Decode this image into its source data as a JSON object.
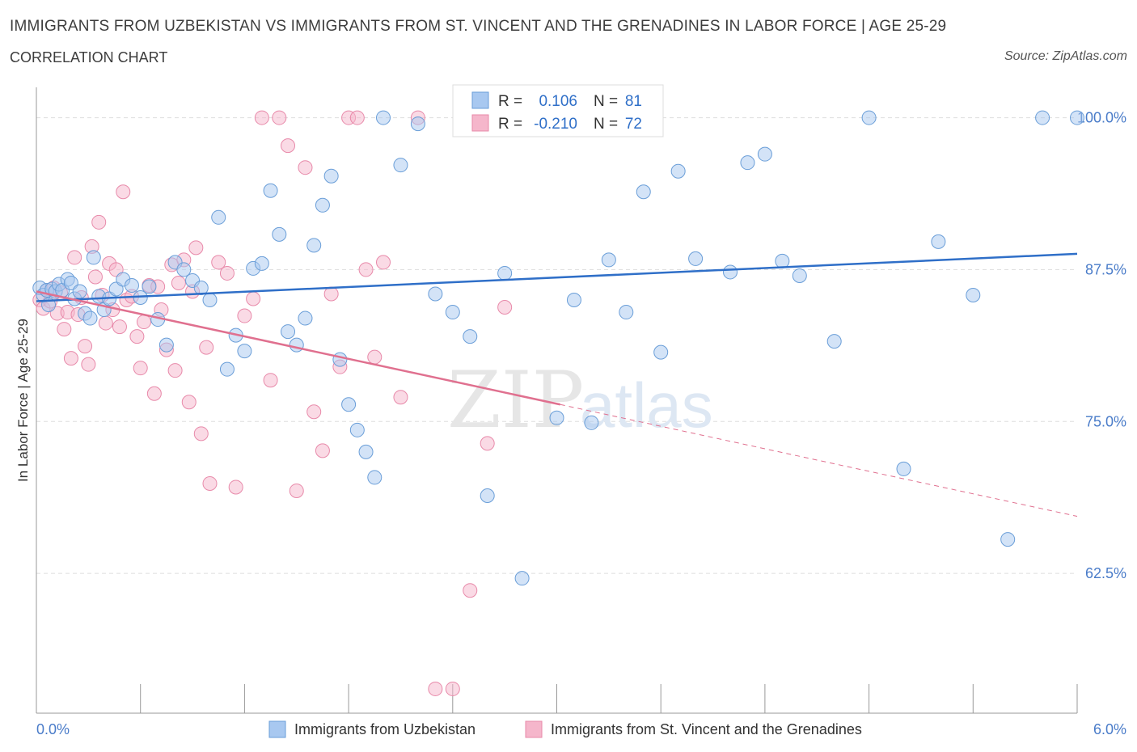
{
  "header": {
    "title": "IMMIGRANTS FROM UZBEKISTAN VS IMMIGRANTS FROM ST. VINCENT AND THE GRENADINES IN LABOR FORCE | AGE 25-29",
    "subtitle": "CORRELATION CHART",
    "source": "Source: ZipAtlas.com"
  },
  "watermark": {
    "zip": "ZIP",
    "atlas": "atlas"
  },
  "stats_box": {
    "r_label": "R =",
    "n_label": "N =",
    "rows": [
      {
        "r": "0.106",
        "n": "81"
      },
      {
        "r": "-0.210",
        "n": "72"
      }
    ]
  },
  "colors": {
    "blue_fill": "#a8c8f0",
    "blue_stroke": "#6a9ed8",
    "blue_line": "#2f6fc8",
    "pink_fill": "#f5b6cb",
    "pink_stroke": "#e88aaa",
    "pink_line": "#e0708f",
    "tick_label": "#4a7cc9",
    "grid": "#dddddd"
  },
  "chart_data": {
    "type": "scatter",
    "title": "IMMIGRANTS FROM UZBEKISTAN VS IMMIGRANTS FROM ST. VINCENT AND THE GRENADINES IN LABOR FORCE | AGE 25-29",
    "xlabel": "",
    "ylabel": "In Labor Force | Age 25-29",
    "xlim": [
      0,
      6
    ],
    "ylim": [
      51,
      102.5
    ],
    "x_tick_labels": [
      "0.0%",
      "6.0%"
    ],
    "y_ticks": [
      62.5,
      75.0,
      87.5,
      100.0
    ],
    "y_tick_labels": [
      "62.5%",
      "75.0%",
      "87.5%",
      "100.0%"
    ],
    "grid": true,
    "legend_position": "bottom-center",
    "series": [
      {
        "name": "Immigrants from Uzbekistan",
        "color": "#a8c8f0",
        "trend": {
          "x": [
            0,
            6
          ],
          "y": [
            84.9,
            88.8
          ]
        },
        "points": [
          [
            0.02,
            86.0
          ],
          [
            0.04,
            85.4
          ],
          [
            0.06,
            85.8
          ],
          [
            0.07,
            84.6
          ],
          [
            0.09,
            85.9
          ],
          [
            0.11,
            85.7
          ],
          [
            0.13,
            86.3
          ],
          [
            0.15,
            85.8
          ],
          [
            0.18,
            86.7
          ],
          [
            0.2,
            86.4
          ],
          [
            0.22,
            85.1
          ],
          [
            0.25,
            85.7
          ],
          [
            0.28,
            83.9
          ],
          [
            0.31,
            83.5
          ],
          [
            0.33,
            88.5
          ],
          [
            0.36,
            85.3
          ],
          [
            0.39,
            84.2
          ],
          [
            0.42,
            85.1
          ],
          [
            0.46,
            85.9
          ],
          [
            0.5,
            86.7
          ],
          [
            0.55,
            86.2
          ],
          [
            0.6,
            85.2
          ],
          [
            0.65,
            86.1
          ],
          [
            0.7,
            83.4
          ],
          [
            0.75,
            81.3
          ],
          [
            0.8,
            88.1
          ],
          [
            0.85,
            87.5
          ],
          [
            0.9,
            86.6
          ],
          [
            0.95,
            86.0
          ],
          [
            1.0,
            85.0
          ],
          [
            1.05,
            91.8
          ],
          [
            1.1,
            79.3
          ],
          [
            1.15,
            82.1
          ],
          [
            1.2,
            80.8
          ],
          [
            1.25,
            87.6
          ],
          [
            1.3,
            88.0
          ],
          [
            1.35,
            94.0
          ],
          [
            1.4,
            90.4
          ],
          [
            1.45,
            82.4
          ],
          [
            1.5,
            81.3
          ],
          [
            1.55,
            83.5
          ],
          [
            1.6,
            89.5
          ],
          [
            1.65,
            92.8
          ],
          [
            1.7,
            95.2
          ],
          [
            1.75,
            80.1
          ],
          [
            1.8,
            76.4
          ],
          [
            1.85,
            74.3
          ],
          [
            1.9,
            72.5
          ],
          [
            1.95,
            70.4
          ],
          [
            2.0,
            100.0
          ],
          [
            2.1,
            96.1
          ],
          [
            2.2,
            99.5
          ],
          [
            2.3,
            85.5
          ],
          [
            2.4,
            84.0
          ],
          [
            2.5,
            82.0
          ],
          [
            2.6,
            68.9
          ],
          [
            2.7,
            87.2
          ],
          [
            2.8,
            62.1
          ],
          [
            2.9,
            100.0
          ],
          [
            3.0,
            75.3
          ],
          [
            3.1,
            85.0
          ],
          [
            3.2,
            74.9
          ],
          [
            3.3,
            88.3
          ],
          [
            3.4,
            84.0
          ],
          [
            3.5,
            93.9
          ],
          [
            3.6,
            80.7
          ],
          [
            3.7,
            95.6
          ],
          [
            3.8,
            88.4
          ],
          [
            4.0,
            87.3
          ],
          [
            4.1,
            96.3
          ],
          [
            4.2,
            97.0
          ],
          [
            4.3,
            88.2
          ],
          [
            4.4,
            87.0
          ],
          [
            4.6,
            81.6
          ],
          [
            4.8,
            100.0
          ],
          [
            5.0,
            71.1
          ],
          [
            5.2,
            89.8
          ],
          [
            5.4,
            85.4
          ],
          [
            5.6,
            65.3
          ],
          [
            5.8,
            100.0
          ],
          [
            6.0,
            100.0
          ]
        ]
      },
      {
        "name": "Immigrants from St. Vincent and the Grenadines",
        "color": "#f5b6cb",
        "trend": {
          "x": [
            0,
            3.02
          ],
          "y": [
            85.7,
            76.4
          ]
        },
        "trend_dashed": {
          "x": [
            3.02,
            6
          ],
          "y": [
            76.4,
            67.2
          ]
        },
        "points": [
          [
            0.02,
            85.0
          ],
          [
            0.04,
            84.3
          ],
          [
            0.06,
            85.8
          ],
          [
            0.08,
            84.9
          ],
          [
            0.1,
            86.0
          ],
          [
            0.12,
            83.9
          ],
          [
            0.14,
            85.6
          ],
          [
            0.16,
            82.6
          ],
          [
            0.18,
            84.0
          ],
          [
            0.2,
            80.2
          ],
          [
            0.22,
            88.5
          ],
          [
            0.24,
            83.8
          ],
          [
            0.26,
            85.2
          ],
          [
            0.28,
            81.2
          ],
          [
            0.3,
            79.7
          ],
          [
            0.32,
            89.4
          ],
          [
            0.34,
            86.9
          ],
          [
            0.36,
            91.4
          ],
          [
            0.38,
            85.4
          ],
          [
            0.4,
            83.1
          ],
          [
            0.42,
            88.0
          ],
          [
            0.44,
            84.2
          ],
          [
            0.46,
            87.5
          ],
          [
            0.48,
            82.8
          ],
          [
            0.5,
            93.9
          ],
          [
            0.52,
            85.0
          ],
          [
            0.55,
            85.3
          ],
          [
            0.58,
            82.0
          ],
          [
            0.6,
            79.4
          ],
          [
            0.62,
            83.2
          ],
          [
            0.65,
            86.2
          ],
          [
            0.68,
            77.3
          ],
          [
            0.7,
            86.1
          ],
          [
            0.72,
            84.2
          ],
          [
            0.75,
            80.9
          ],
          [
            0.78,
            87.9
          ],
          [
            0.8,
            79.2
          ],
          [
            0.82,
            86.4
          ],
          [
            0.85,
            88.3
          ],
          [
            0.88,
            76.6
          ],
          [
            0.9,
            85.7
          ],
          [
            0.92,
            89.3
          ],
          [
            0.95,
            74.0
          ],
          [
            0.98,
            81.1
          ],
          [
            1.0,
            69.9
          ],
          [
            1.05,
            88.1
          ],
          [
            1.1,
            87.2
          ],
          [
            1.15,
            69.6
          ],
          [
            1.2,
            83.7
          ],
          [
            1.25,
            85.1
          ],
          [
            1.3,
            100.0
          ],
          [
            1.35,
            78.4
          ],
          [
            1.4,
            100.0
          ],
          [
            1.45,
            97.7
          ],
          [
            1.5,
            69.3
          ],
          [
            1.55,
            95.9
          ],
          [
            1.6,
            75.8
          ],
          [
            1.65,
            72.6
          ],
          [
            1.7,
            85.5
          ],
          [
            1.75,
            79.5
          ],
          [
            1.8,
            100.0
          ],
          [
            1.85,
            100.0
          ],
          [
            1.9,
            87.5
          ],
          [
            1.95,
            80.3
          ],
          [
            2.0,
            88.1
          ],
          [
            2.1,
            77.0
          ],
          [
            2.2,
            100.0
          ],
          [
            2.3,
            53.0
          ],
          [
            2.4,
            53.0
          ],
          [
            2.5,
            61.1
          ],
          [
            2.6,
            73.2
          ],
          [
            2.7,
            84.4
          ]
        ]
      }
    ]
  },
  "legend": {
    "items": [
      {
        "label": "Immigrants from Uzbekistan"
      },
      {
        "label": "Immigrants from St. Vincent and the Grenadines"
      }
    ]
  }
}
